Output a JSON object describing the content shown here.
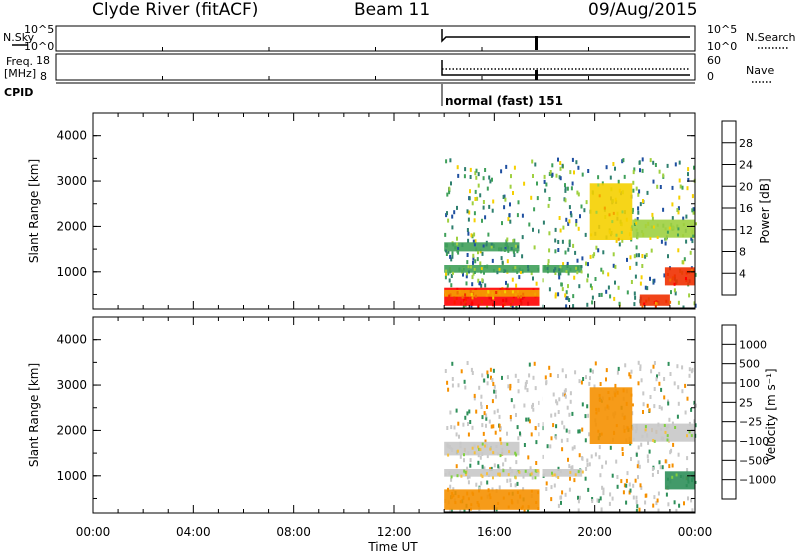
{
  "header": {
    "station": "Clyde River (fitACF)",
    "beam": "Beam 11",
    "date": "09/Aug/2015"
  },
  "panels": {
    "nsky": {
      "left_label": "N.Sky",
      "right_label": "N.Search",
      "left_ticks": [
        "10^5",
        "10^0"
      ],
      "right_ticks": [
        "10^5",
        "10^0"
      ]
    },
    "freq": {
      "left_label_1": "Freq.",
      "left_label_2": "[MHz]",
      "right_label": "Nave",
      "left_ticks": [
        "18",
        "8"
      ],
      "right_ticks": [
        "60",
        "0"
      ]
    },
    "cpid": {
      "label": "CPID",
      "mode_text": "normal (fast) 151"
    }
  },
  "colors": {
    "power_scale": [
      "#0000ff",
      "#1f4fa0",
      "#2e7f6e",
      "#3fa05a",
      "#9fd040",
      "#f5d000",
      "#f5a000",
      "#f07000",
      "#f03000",
      "#ff0000"
    ],
    "velocity_scale": [
      "#ff0000",
      "#f05000",
      "#f59000",
      "#f5c040",
      "#c8c8c8",
      "#80d040",
      "#2e8f5a",
      "#1f5fa0",
      "#0000ff"
    ],
    "ground_scatter": "#c0c0c0"
  },
  "chart_data": [
    {
      "type": "heatmap",
      "name": "power",
      "ylabel": "Slant Range [km]",
      "y_ticks": [
        "1000",
        "2000",
        "3000",
        "4000"
      ],
      "ylim": [
        180,
        4500
      ],
      "xlim": [
        "00:00",
        "24:00"
      ],
      "colorbar_label": "Power [dB]",
      "colorbar_ticks": [
        "4",
        "8",
        "12",
        "16",
        "20",
        "24",
        "28"
      ],
      "colorbar_range": [
        0,
        32
      ],
      "data_start": "14:00",
      "features": [
        {
          "t": [
            14.0,
            17.8
          ],
          "range": [
            250,
            650
          ],
          "value": 30
        },
        {
          "t": [
            14.0,
            17.8
          ],
          "range": [
            450,
            600
          ],
          "value": 22
        },
        {
          "t": [
            14.0,
            19.5
          ],
          "range": [
            980,
            1150
          ],
          "value": 12
        },
        {
          "t": [
            14.0,
            17.0
          ],
          "range": [
            1450,
            1650
          ],
          "value": 10
        },
        {
          "t": [
            19.8,
            21.5
          ],
          "range": [
            1700,
            2950
          ],
          "value": 18
        },
        {
          "t": [
            21.5,
            24.0
          ],
          "range": [
            1750,
            2150
          ],
          "value": 14
        },
        {
          "t": [
            22.8,
            24.0
          ],
          "range": [
            700,
            1100
          ],
          "value": 28
        },
        {
          "t": [
            21.8,
            23.0
          ],
          "range": [
            250,
            500
          ],
          "value": 26
        }
      ]
    },
    {
      "type": "heatmap",
      "name": "velocity",
      "ylabel": "Slant Range [km]",
      "xlabel": "Time UT",
      "y_ticks": [
        "1000",
        "2000",
        "3000",
        "4000"
      ],
      "ylim": [
        180,
        4500
      ],
      "xlim": [
        "00:00",
        "24:00"
      ],
      "x_ticks": [
        "00:00",
        "04:00",
        "08:00",
        "12:00",
        "16:00",
        "20:00",
        "00:00"
      ],
      "colorbar_label": "Velocity [m s⁻¹]",
      "colorbar_ticks": [
        "1000",
        "500",
        "100",
        "25",
        "−25",
        "−100",
        "−500",
        "−1000"
      ],
      "data_start": "14:00",
      "features": [
        {
          "t": [
            14.0,
            17.8
          ],
          "range": [
            250,
            700
          ],
          "value": -300
        },
        {
          "t": [
            14.0,
            19.5
          ],
          "range": [
            980,
            1150
          ],
          "value": 0
        },
        {
          "t": [
            14.0,
            17.0
          ],
          "range": [
            1450,
            1750
          ],
          "value": 0
        },
        {
          "t": [
            19.8,
            21.5
          ],
          "range": [
            1700,
            2950
          ],
          "value": -200
        },
        {
          "t": [
            21.5,
            24.0
          ],
          "range": [
            1750,
            2150
          ],
          "value": 0
        },
        {
          "t": [
            22.8,
            24.0
          ],
          "range": [
            700,
            1100
          ],
          "value": 150
        }
      ]
    }
  ]
}
